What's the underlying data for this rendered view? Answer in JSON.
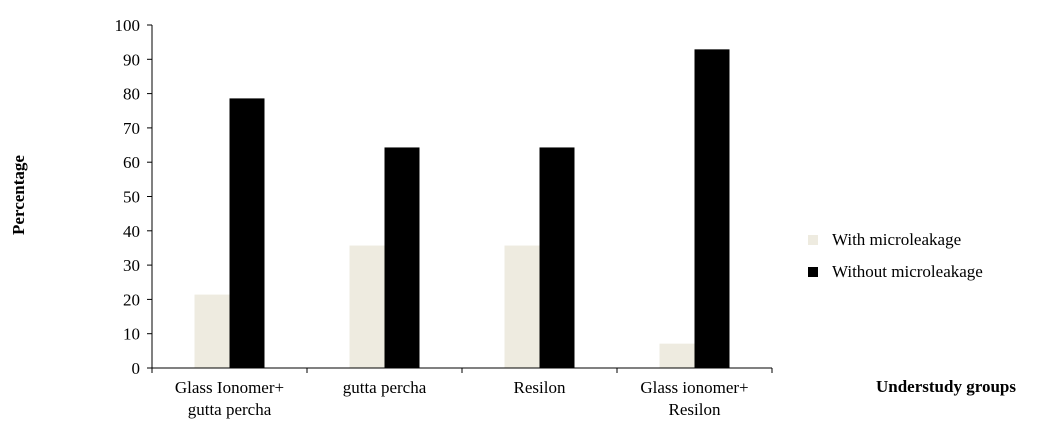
{
  "chart_data": {
    "type": "bar",
    "categories": [
      [
        "Glass Ionomer+",
        "gutta percha"
      ],
      [
        "gutta percha"
      ],
      [
        "Resilon"
      ],
      [
        "Glass ionomer+",
        "Resilon"
      ]
    ],
    "series": [
      {
        "name": "With microleakage",
        "color": "#eeebe0",
        "values": [
          21.4,
          35.7,
          35.7,
          7.1
        ]
      },
      {
        "name": "Without microleakage",
        "color": "#000000",
        "values": [
          78.6,
          64.3,
          64.3,
          92.9
        ]
      }
    ],
    "xlabel": "Understudy groups",
    "ylabel": "Percentage",
    "ylim": [
      0,
      100
    ],
    "yticks": [
      0,
      10,
      20,
      30,
      40,
      50,
      60,
      70,
      80,
      90,
      100
    ],
    "grid": false,
    "legend_position": "right"
  }
}
